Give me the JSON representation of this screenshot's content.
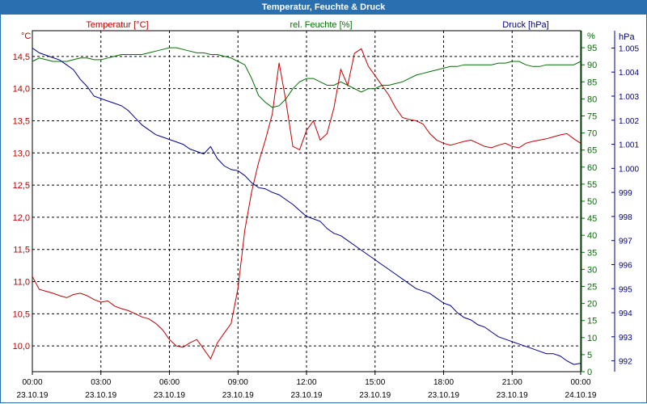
{
  "window": {
    "title": "Temperatur, Feuchte & Druck"
  },
  "colors": {
    "temperature": "#c00000",
    "humidity": "#007000",
    "pressure": "#00008b",
    "title_bar": "#2a6fb0"
  },
  "chart_data": {
    "type": "line",
    "title": "Temperatur, Feuchte & Druck",
    "grid": true,
    "x_ticks": [
      {
        "time": "00:00",
        "date": "23.10.19"
      },
      {
        "time": "03:00",
        "date": "23.10.19"
      },
      {
        "time": "06:00",
        "date": "23.10.19"
      },
      {
        "time": "09:00",
        "date": "23.10.19"
      },
      {
        "time": "12:00",
        "date": "23.10.19"
      },
      {
        "time": "15:00",
        "date": "23.10.19"
      },
      {
        "time": "18:00",
        "date": "23.10.19"
      },
      {
        "time": "21:00",
        "date": "23.10.19"
      },
      {
        "time": "00:00",
        "date": "24.10.19"
      }
    ],
    "x_range_hours": [
      0,
      24
    ],
    "axes": {
      "temperature": {
        "label": "Temperatur [°C]",
        "unit_label": "°C",
        "range": [
          9.6,
          14.9
        ],
        "ticks": [
          "10,0",
          "10,5",
          "11,0",
          "11,5",
          "12,0",
          "12,5",
          "13,0",
          "13,5",
          "14,0",
          "14,5"
        ]
      },
      "humidity": {
        "label": "rel. Feuchte [%]",
        "range": [
          0,
          100
        ],
        "ticks": [
          "0",
          "5",
          "10",
          "15",
          "20",
          "25",
          "30",
          "35",
          "40",
          "45",
          "50",
          "55",
          "60",
          "65",
          "70",
          "75",
          "80",
          "85",
          "90",
          "95"
        ],
        "unit_tick": "%"
      },
      "pressure": {
        "label": "Druck [hPa]",
        "unit_label": "hPa",
        "range": [
          991.55,
          1005.72
        ],
        "ticks": [
          "992",
          "993",
          "994",
          "995",
          "996",
          "997",
          "998",
          "999",
          "1.000",
          "1.001",
          "1.002",
          "1.003",
          "1.004",
          "1.005"
        ]
      }
    },
    "series": [
      {
        "name": "Temperatur [°C]",
        "axis": "temperature",
        "x": [
          0,
          0.3,
          0.6,
          0.9,
          1.2,
          1.5,
          1.8,
          2.1,
          2.4,
          2.7,
          3.0,
          3.3,
          3.6,
          3.9,
          4.2,
          4.5,
          4.8,
          5.1,
          5.4,
          5.7,
          6.0,
          6.3,
          6.6,
          6.9,
          7.2,
          7.5,
          7.8,
          8.1,
          8.4,
          8.7,
          9.0,
          9.3,
          9.6,
          9.9,
          10.2,
          10.5,
          10.8,
          11.1,
          11.4,
          11.7,
          12.0,
          12.3,
          12.6,
          12.9,
          13.2,
          13.5,
          13.8,
          14.1,
          14.4,
          14.7,
          15.0,
          15.3,
          15.6,
          15.9,
          16.2,
          16.5,
          16.8,
          17.1,
          17.4,
          17.7,
          18.0,
          18.3,
          18.6,
          18.9,
          19.2,
          19.5,
          19.8,
          20.1,
          20.4,
          20.7,
          21.0,
          21.3,
          21.6,
          21.9,
          22.2,
          22.5,
          22.8,
          23.1,
          23.4,
          23.7,
          24.0
        ],
        "y": [
          11.08,
          10.88,
          10.85,
          10.82,
          10.78,
          10.75,
          10.8,
          10.82,
          10.78,
          10.72,
          10.68,
          10.7,
          10.62,
          10.58,
          10.55,
          10.5,
          10.45,
          10.42,
          10.35,
          10.25,
          10.1,
          10.0,
          9.98,
          10.05,
          10.1,
          9.95,
          9.8,
          10.05,
          10.2,
          10.35,
          10.9,
          11.8,
          12.4,
          12.85,
          13.2,
          13.6,
          14.4,
          13.8,
          13.1,
          13.05,
          13.35,
          13.5,
          13.2,
          13.3,
          13.7,
          14.3,
          14.05,
          14.55,
          14.62,
          14.35,
          14.2,
          14.05,
          13.9,
          13.7,
          13.55,
          13.52,
          13.5,
          13.45,
          13.3,
          13.2,
          13.15,
          13.12,
          13.15,
          13.18,
          13.2,
          13.15,
          13.1,
          13.08,
          13.12,
          13.15,
          13.1,
          13.08,
          13.15,
          13.18,
          13.2,
          13.22,
          13.25,
          13.28,
          13.3,
          13.22,
          13.15
        ]
      },
      {
        "name": "rel. Feuchte [%]",
        "axis": "humidity",
        "x": [
          0,
          0.3,
          0.6,
          0.9,
          1.2,
          1.5,
          1.8,
          2.1,
          2.4,
          2.7,
          3.0,
          3.3,
          3.6,
          3.9,
          4.2,
          4.5,
          4.8,
          5.1,
          5.4,
          5.7,
          6.0,
          6.3,
          6.6,
          6.9,
          7.2,
          7.5,
          7.8,
          8.1,
          8.4,
          8.7,
          9.0,
          9.3,
          9.6,
          9.9,
          10.2,
          10.5,
          10.8,
          11.1,
          11.4,
          11.7,
          12.0,
          12.3,
          12.6,
          12.9,
          13.2,
          13.5,
          13.8,
          14.1,
          14.4,
          14.7,
          15.0,
          15.3,
          15.6,
          15.9,
          16.2,
          16.5,
          16.8,
          17.1,
          17.4,
          17.7,
          18.0,
          18.3,
          18.6,
          18.9,
          19.2,
          19.5,
          19.8,
          20.1,
          20.4,
          20.7,
          21.0,
          21.3,
          21.6,
          21.9,
          22.2,
          22.5,
          22.8,
          23.1,
          23.4,
          23.7,
          24.0
        ],
        "y": [
          91,
          92,
          91.5,
          91,
          91,
          91,
          91.5,
          92,
          92,
          91.5,
          91.5,
          92,
          92.5,
          93,
          93,
          93,
          93,
          93.5,
          94,
          94.5,
          95,
          95,
          94.5,
          94,
          93.5,
          93.5,
          93,
          93,
          92.5,
          92,
          91,
          90,
          86,
          81,
          79,
          77.5,
          78,
          80,
          83,
          85,
          86,
          86,
          85,
          84,
          84,
          85,
          84,
          83,
          82,
          83,
          83,
          84,
          84,
          84.5,
          85,
          86,
          87,
          87.5,
          88,
          88.5,
          89,
          89.5,
          89.5,
          90,
          90,
          90,
          90,
          90,
          90.5,
          90.5,
          91,
          91,
          90,
          89.5,
          89.5,
          90,
          90,
          90,
          90,
          90,
          91
        ]
      },
      {
        "name": "Druck [hPa]",
        "axis": "pressure",
        "x": [
          0,
          0.3,
          0.6,
          0.9,
          1.2,
          1.5,
          1.8,
          2.1,
          2.4,
          2.7,
          3.0,
          3.3,
          3.6,
          3.9,
          4.2,
          4.5,
          4.8,
          5.1,
          5.4,
          5.7,
          6.0,
          6.3,
          6.6,
          6.9,
          7.2,
          7.5,
          7.8,
          8.1,
          8.4,
          8.7,
          9.0,
          9.3,
          9.6,
          9.9,
          10.2,
          10.5,
          10.8,
          11.1,
          11.4,
          11.7,
          12.0,
          12.3,
          12.6,
          12.9,
          13.2,
          13.5,
          13.8,
          14.1,
          14.4,
          14.7,
          15.0,
          15.3,
          15.6,
          15.9,
          16.2,
          16.5,
          16.8,
          17.1,
          17.4,
          17.7,
          18.0,
          18.3,
          18.6,
          18.9,
          19.2,
          19.5,
          19.8,
          20.1,
          20.4,
          20.7,
          21.0,
          21.3,
          21.6,
          21.9,
          22.2,
          22.5,
          22.8,
          23.1,
          23.4,
          23.7,
          24.0
        ],
        "y": [
          1005.0,
          1004.8,
          1004.7,
          1004.6,
          1004.5,
          1004.3,
          1004.1,
          1003.7,
          1003.4,
          1003.0,
          1002.9,
          1002.8,
          1002.7,
          1002.6,
          1002.4,
          1002.1,
          1001.8,
          1001.6,
          1001.4,
          1001.3,
          1001.2,
          1001.1,
          1001.0,
          1000.8,
          1000.7,
          1000.6,
          1000.9,
          1000.4,
          1000.1,
          999.95,
          999.9,
          999.7,
          999.4,
          999.2,
          999.15,
          999.0,
          998.9,
          998.7,
          998.5,
          998.25,
          998.0,
          997.9,
          997.8,
          997.5,
          997.3,
          997.2,
          997.0,
          996.8,
          996.6,
          996.4,
          996.2,
          996.0,
          995.8,
          995.6,
          995.4,
          995.2,
          995.0,
          994.9,
          994.8,
          994.6,
          994.4,
          994.3,
          994.0,
          993.8,
          993.7,
          993.5,
          993.4,
          993.2,
          993.0,
          992.9,
          992.8,
          992.7,
          992.6,
          992.5,
          992.4,
          992.3,
          992.3,
          992.2,
          992.0,
          991.85,
          991.9
        ]
      }
    ]
  }
}
